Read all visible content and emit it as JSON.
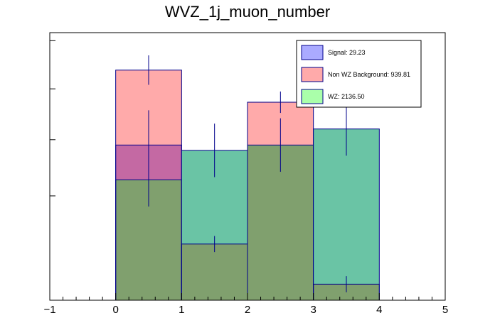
{
  "chart_data": {
    "type": "bar",
    "title": "WVZ_1j_muon_number",
    "xlabel": "",
    "ylabel": "",
    "xlim": [
      -1,
      5
    ],
    "ylim": [
      0,
      1.0
    ],
    "bins": [
      [
        0,
        1
      ],
      [
        1,
        2
      ],
      [
        2,
        3
      ],
      [
        3,
        4
      ]
    ],
    "x_ticks": [
      -1,
      0,
      1,
      2,
      3,
      4,
      5
    ],
    "x_tick_labels": [
      "−1",
      "0",
      "1",
      "2",
      "3",
      "4",
      "5"
    ],
    "y_ticks": [
      0.39,
      0.6,
      0.79
    ],
    "y_tick_labels": [
      "",
      "",
      ""
    ],
    "series": [
      {
        "name": "Signal",
        "legend_label": "Signal: 29.23",
        "fill": "#aaaaff",
        "values": [
          0.58,
          0.0,
          0.0,
          0.0
        ],
        "errors": [
          0.13,
          0.0,
          0.0,
          0.0
        ]
      },
      {
        "name": "Non WZ Background",
        "legend_label": "Non WZ Background: 939.81",
        "fill": "#ffaaaa",
        "values": [
          0.86,
          0.21,
          0.74,
          0.06
        ],
        "errors": [
          0.055,
          0.03,
          0.04,
          0.03
        ]
      },
      {
        "name": "WZ",
        "legend_label": "WZ: 2136.50",
        "fill": "#aaffaa",
        "values": [
          0.45,
          0.56,
          0.58,
          0.64
        ],
        "errors": [
          0.1,
          0.1,
          0.1,
          0.1
        ]
      }
    ],
    "overlap_fills": {
      "signal_nonwz": "#c469a3",
      "nonwz_wz": "#80a06e",
      "wz_only": "#6ac4a5",
      "all": "#80a06e"
    },
    "edge_color": "#00008b",
    "legend_position": "top-right"
  }
}
